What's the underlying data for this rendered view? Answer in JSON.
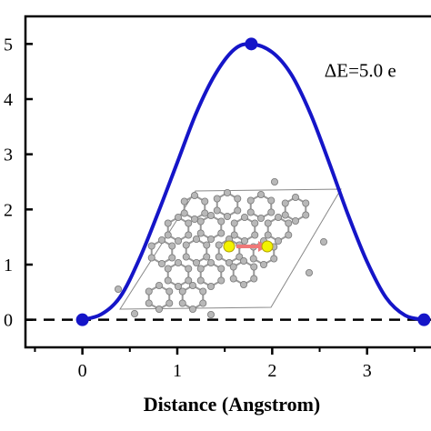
{
  "chart_data": {
    "type": "line",
    "title": "",
    "xlabel": "Distance (Angstrom)",
    "ylabel": "",
    "xlim": [
      -0.6,
      3.75
    ],
    "ylim": [
      -0.5,
      5.5
    ],
    "x_ticks": [
      0,
      1,
      2,
      3
    ],
    "x_tick_labels": [
      "0",
      "1",
      "2",
      "3"
    ],
    "y_ticks": [
      0,
      1,
      2,
      3,
      4,
      5
    ],
    "y_tick_labels": [
      "0",
      "1",
      "2",
      "3",
      "4",
      "5"
    ],
    "grid": false,
    "series": [
      {
        "color": "#1515c8",
        "x": [
          0,
          0.2,
          0.4,
          0.6,
          0.8,
          1.0,
          1.2,
          1.4,
          1.6,
          1.78,
          2.0,
          2.2,
          2.4,
          2.6,
          2.8,
          3.0,
          3.2,
          3.4,
          3.6
        ],
        "y": [
          0.0,
          0.1,
          0.42,
          1.1,
          1.95,
          2.85,
          3.75,
          4.45,
          4.9,
          5.0,
          4.85,
          4.45,
          3.75,
          2.85,
          1.9,
          1.05,
          0.4,
          0.08,
          0.0
        ]
      }
    ],
    "points": [
      {
        "x": 0,
        "y": 0
      },
      {
        "x": 1.78,
        "y": 5.0
      },
      {
        "x": 3.6,
        "y": 0.0
      }
    ],
    "baseline": {
      "y": 0,
      "style": "dashed",
      "color": "#000000"
    },
    "annotations": [
      {
        "text": "ΔE=5.0 e",
        "x": 2.55,
        "y": 4.4
      }
    ],
    "inset": "atomic structure (gray atoms, two yellow atoms with red arrow)"
  }
}
